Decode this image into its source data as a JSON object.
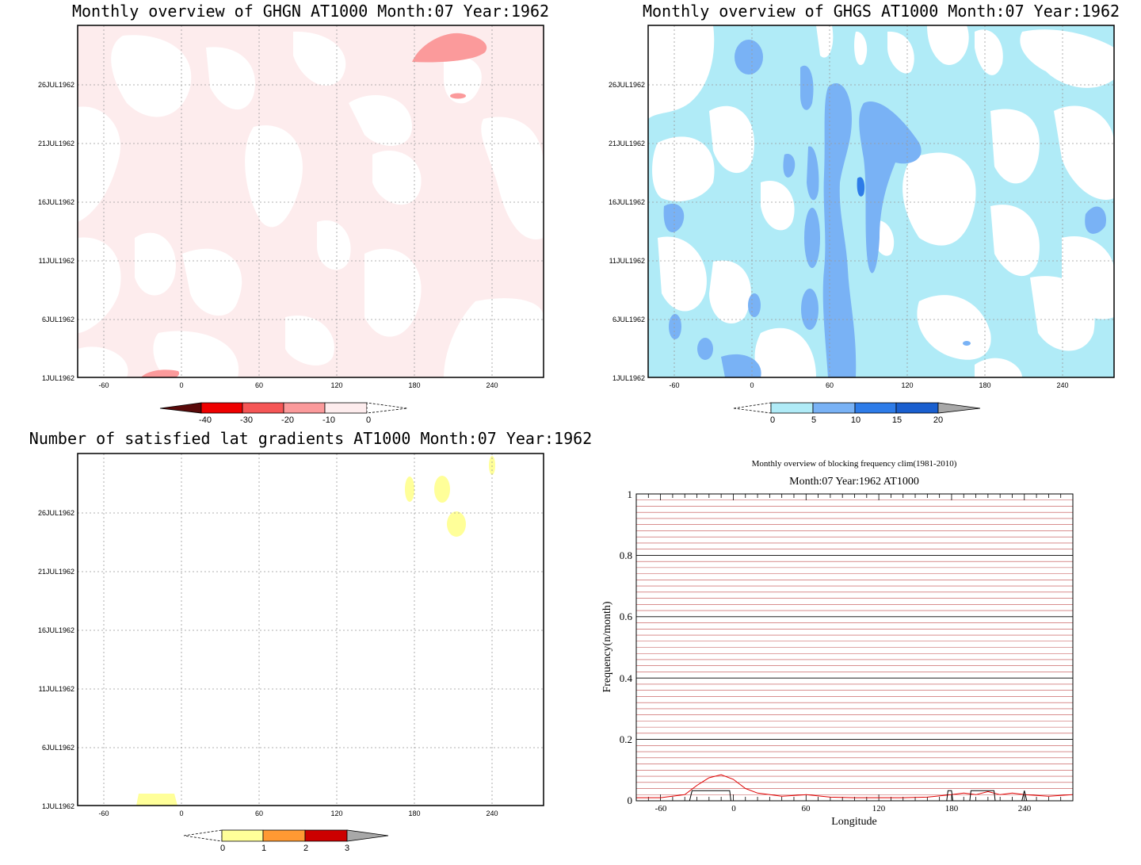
{
  "panels": {
    "ghgn": {
      "title": "Monthly overview of GHGN AT1000 Month:07 Year:1962",
      "colorbar_labels": [
        "-40",
        "-30",
        "-20",
        "-10",
        "0"
      ],
      "colors": {
        "fill": "#fdeced",
        "strong": "#fb9a9b"
      }
    },
    "ghgs": {
      "title": "Monthly overview of GHGS AT1000 Month:07 Year:1962",
      "colorbar_labels": [
        "0",
        "5",
        "10",
        "15",
        "20"
      ],
      "colors": {
        "light": "#b0ebf7",
        "mid": "#79b2f5",
        "dark": "#2e7ce8"
      }
    },
    "lat": {
      "title": "Number of satisfied lat gradients AT1000 Month:07 Year:1962",
      "colorbar_labels": [
        "0",
        "1",
        "2",
        "3"
      ],
      "colors": {
        "fill": "#ffff99"
      }
    }
  },
  "hov_axes": {
    "y_ticks": [
      "26JUL1962",
      "21JUL1962",
      "16JUL1962",
      "11JUL1962",
      "6JUL1962",
      "1JUL1962"
    ],
    "x_ticks": [
      "-60",
      "0",
      "60",
      "120",
      "180",
      "240"
    ]
  },
  "freq_chart": {
    "title": "Monthly overview of blocking frequency clim(1981-2010)",
    "subtitle": "Month:07 Year:1962  AT1000",
    "ylabel": "Frequency(n/month)",
    "xlabel": "Longitude",
    "y_ticks": [
      "1",
      "0.8",
      "0.6",
      "0.4",
      "0.2",
      "0"
    ],
    "x_ticks": [
      "-60",
      "0",
      "60",
      "120",
      "180",
      "240"
    ]
  },
  "chart_data": [
    {
      "type": "heatmap",
      "title": "Monthly overview of GHGN AT1000 Month:07 Year:1962",
      "x_ticks": [
        -60,
        0,
        60,
        120,
        180,
        240
      ],
      "y_ticks": [
        "1JUL1962",
        "6JUL1962",
        "11JUL1962",
        "16JUL1962",
        "21JUL1962",
        "26JUL1962"
      ],
      "xlim": [
        -80,
        280
      ],
      "ylim": [
        "1JUL1962",
        "31JUL1962"
      ],
      "levels": [
        -40,
        -30,
        -20,
        -10,
        0
      ],
      "grid": true
    },
    {
      "type": "heatmap",
      "title": "Monthly overview of GHGS AT1000 Month:07 Year:1962",
      "x_ticks": [
        -60,
        0,
        60,
        120,
        180,
        240
      ],
      "y_ticks": [
        "1JUL1962",
        "6JUL1962",
        "11JUL1962",
        "16JUL1962",
        "21JUL1962",
        "26JUL1962"
      ],
      "xlim": [
        -80,
        280
      ],
      "ylim": [
        "1JUL1962",
        "31JUL1962"
      ],
      "levels": [
        0,
        5,
        10,
        15,
        20
      ],
      "grid": true
    },
    {
      "type": "heatmap",
      "title": "Number of satisfied lat gradients AT1000 Month:07 Year:1962",
      "x_ticks": [
        -60,
        0,
        60,
        120,
        180,
        240
      ],
      "y_ticks": [
        "1JUL1962",
        "6JUL1962",
        "11JUL1962",
        "16JUL1962",
        "21JUL1962",
        "26JUL1962"
      ],
      "xlim": [
        -80,
        280
      ],
      "ylim": [
        "1JUL1962",
        "31JUL1962"
      ],
      "levels": [
        0,
        1,
        2,
        3
      ],
      "grid": true
    },
    {
      "type": "line",
      "title": "Monthly overview of blocking frequency clim(1981-2010)",
      "subtitle": "Month:07 Year:1962  AT1000",
      "xlabel": "Longitude",
      "ylabel": "Frequency(n/month)",
      "xlim": [
        -80,
        280
      ],
      "ylim": [
        0,
        1
      ],
      "series": [
        {
          "color": "#e00000",
          "x": [
            -80,
            -60,
            -40,
            -30,
            -20,
            -10,
            0,
            10,
            20,
            40,
            60,
            80,
            100,
            120,
            140,
            160,
            180,
            190,
            200,
            210,
            220,
            230,
            240,
            260,
            280
          ],
          "y": [
            0.01,
            0.01,
            0.02,
            0.05,
            0.075,
            0.085,
            0.07,
            0.04,
            0.025,
            0.015,
            0.02,
            0.012,
            0.01,
            0.01,
            0.01,
            0.012,
            0.02,
            0.025,
            0.02,
            0.03,
            0.02,
            0.025,
            0.02,
            0.015,
            0.02
          ]
        },
        {
          "color": "#000000",
          "x": [
            -80,
            -36,
            -34,
            -3,
            -2,
            0,
            100,
            176,
            177,
            180,
            181,
            195,
            196,
            215,
            216,
            238,
            240,
            242,
            280
          ],
          "y": [
            0,
            0,
            0.033,
            0.033,
            0,
            0,
            0,
            0,
            0.033,
            0.033,
            0,
            0,
            0.033,
            0.033,
            0,
            0,
            0.033,
            0,
            0
          ]
        }
      ]
    }
  ]
}
